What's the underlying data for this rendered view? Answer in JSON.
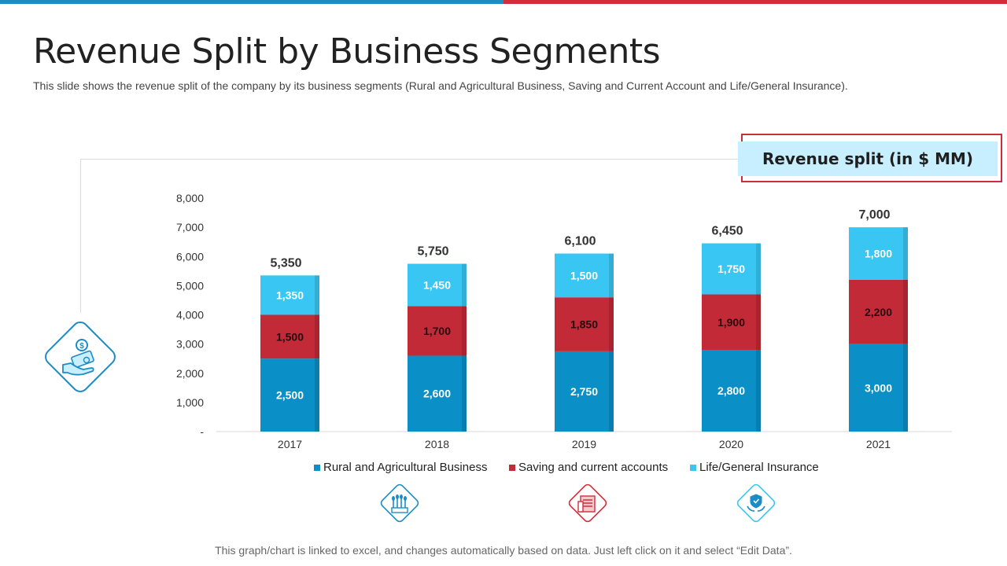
{
  "title": "Revenue Split by Business Segments",
  "subtitle": "This slide shows the revenue split of the company by its business segments (Rural and Agricultural Business, Saving and Current Account and Life/General Insurance).",
  "callout": "Revenue split (in $ MM)",
  "footer": "This graph/chart is linked to excel,  and changes automatically based on data. Just left click on it and select “Edit Data”.",
  "icons": {
    "main": "money-hand-icon",
    "rural": "crops-icon",
    "saving": "bank-icon",
    "insurance": "shield-hands-icon"
  },
  "colors": {
    "rural": "#0a8fc6",
    "saving": "#c22a37",
    "insurance": "#3ac6f2",
    "accent_blue": "#1b8dc4",
    "accent_red": "#d12e3b"
  },
  "chart_data": {
    "type": "bar",
    "stacked": true,
    "title": "Revenue split (in $ MM)",
    "categories": [
      "2017",
      "2018",
      "2019",
      "2020",
      "2021"
    ],
    "series": [
      {
        "name": "Rural and Agricultural Business",
        "values": [
          2500,
          2600,
          2750,
          2800,
          3000
        ]
      },
      {
        "name": "Saving and current accounts",
        "values": [
          1500,
          1700,
          1850,
          1900,
          2200
        ]
      },
      {
        "name": "Life/General Insurance",
        "values": [
          1350,
          1450,
          1500,
          1750,
          1800
        ]
      }
    ],
    "totals": [
      5350,
      5750,
      6100,
      6450,
      7000
    ],
    "ylim": [
      0,
      8000
    ],
    "yticks": [
      "-",
      "1,000",
      "2,000",
      "3,000",
      "4,000",
      "5,000",
      "6,000",
      "7,000",
      "8,000"
    ],
    "legend_position": "bottom",
    "grid": false
  }
}
